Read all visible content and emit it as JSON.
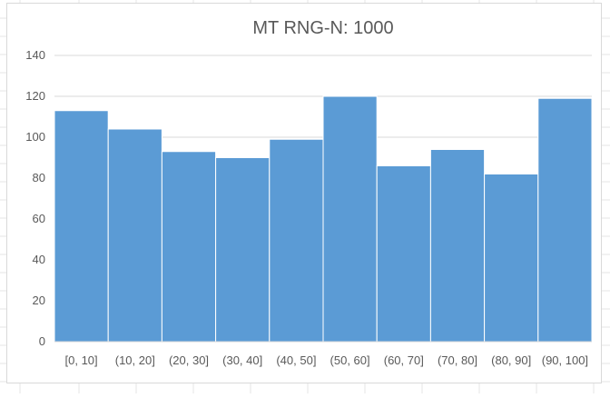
{
  "chart_data": {
    "type": "bar",
    "title": "MT RNG-N: 1000",
    "categories": [
      "[0, 10]",
      "(10, 20]",
      "(20, 30]",
      "(30, 40]",
      "(40, 50]",
      "(50, 60]",
      "(60, 70]",
      "(70, 80]",
      "(80, 90]",
      "(90, 100]"
    ],
    "values": [
      113,
      104,
      93,
      90,
      99,
      120,
      86,
      94,
      82,
      119
    ],
    "ylim": [
      0,
      140
    ],
    "yticks": [
      0,
      20,
      40,
      60,
      80,
      100,
      120,
      140
    ],
    "grid": true,
    "legend": "none",
    "bar_color": "#5b9bd5",
    "gridline_color": "#d9d9d9",
    "text_color": "#595959"
  }
}
